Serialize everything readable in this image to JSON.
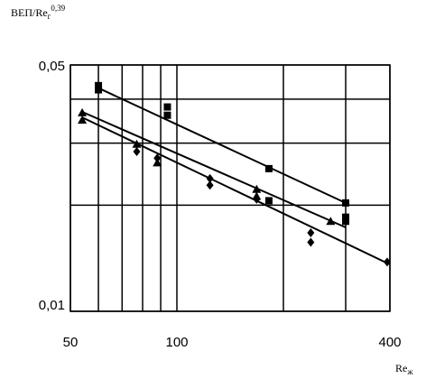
{
  "chart_data": {
    "type": "scatter",
    "y_label": "ВЕП/Re",
    "y_label_sub": "г",
    "y_label_sup": "0,39",
    "x_label": "Re",
    "x_label_sub": "ж",
    "xlog": true,
    "ylog": true,
    "grid": true,
    "color": "#000000",
    "xlim": [
      50,
      400
    ],
    "xticks": [
      50,
      100,
      400
    ],
    "xminor": [
      60,
      70,
      80,
      90,
      200,
      300
    ],
    "ylim": [
      0.01,
      0.05
    ],
    "yticks": [
      {
        "value": 0.01,
        "label": "0,01"
      },
      {
        "value": 0.05,
        "label": "0,05"
      }
    ],
    "yminor": [
      0.02,
      0.03,
      0.04
    ],
    "series": [
      {
        "marker": "square",
        "x": [
          60,
          60,
          94,
          94,
          182,
          182,
          300,
          300,
          300
        ],
        "values": [
          0.0437,
          0.0425,
          0.038,
          0.036,
          0.0254,
          0.0206,
          0.0203,
          0.018,
          0.0185
        ]
      },
      {
        "marker": "triangle",
        "x": [
          54,
          54,
          77,
          88,
          168,
          168,
          272
        ],
        "values": [
          0.0366,
          0.0349,
          0.0298,
          0.0264,
          0.0222,
          0.0212,
          0.018
        ]
      },
      {
        "marker": "diamond",
        "x": [
          77,
          88,
          124,
          124,
          168,
          239,
          239,
          393
        ],
        "values": [
          0.0284,
          0.0272,
          0.0228,
          0.0238,
          0.0208,
          0.0167,
          0.0157,
          0.0138
        ]
      }
    ],
    "trend_lines": [
      {
        "x": [
          60,
          300
        ],
        "values": [
          0.043,
          0.0203
        ]
      },
      {
        "x": [
          54,
          300
        ],
        "values": [
          0.0368,
          0.0173
        ]
      },
      {
        "x": [
          54,
          393
        ],
        "values": [
          0.0355,
          0.0137
        ]
      }
    ]
  }
}
